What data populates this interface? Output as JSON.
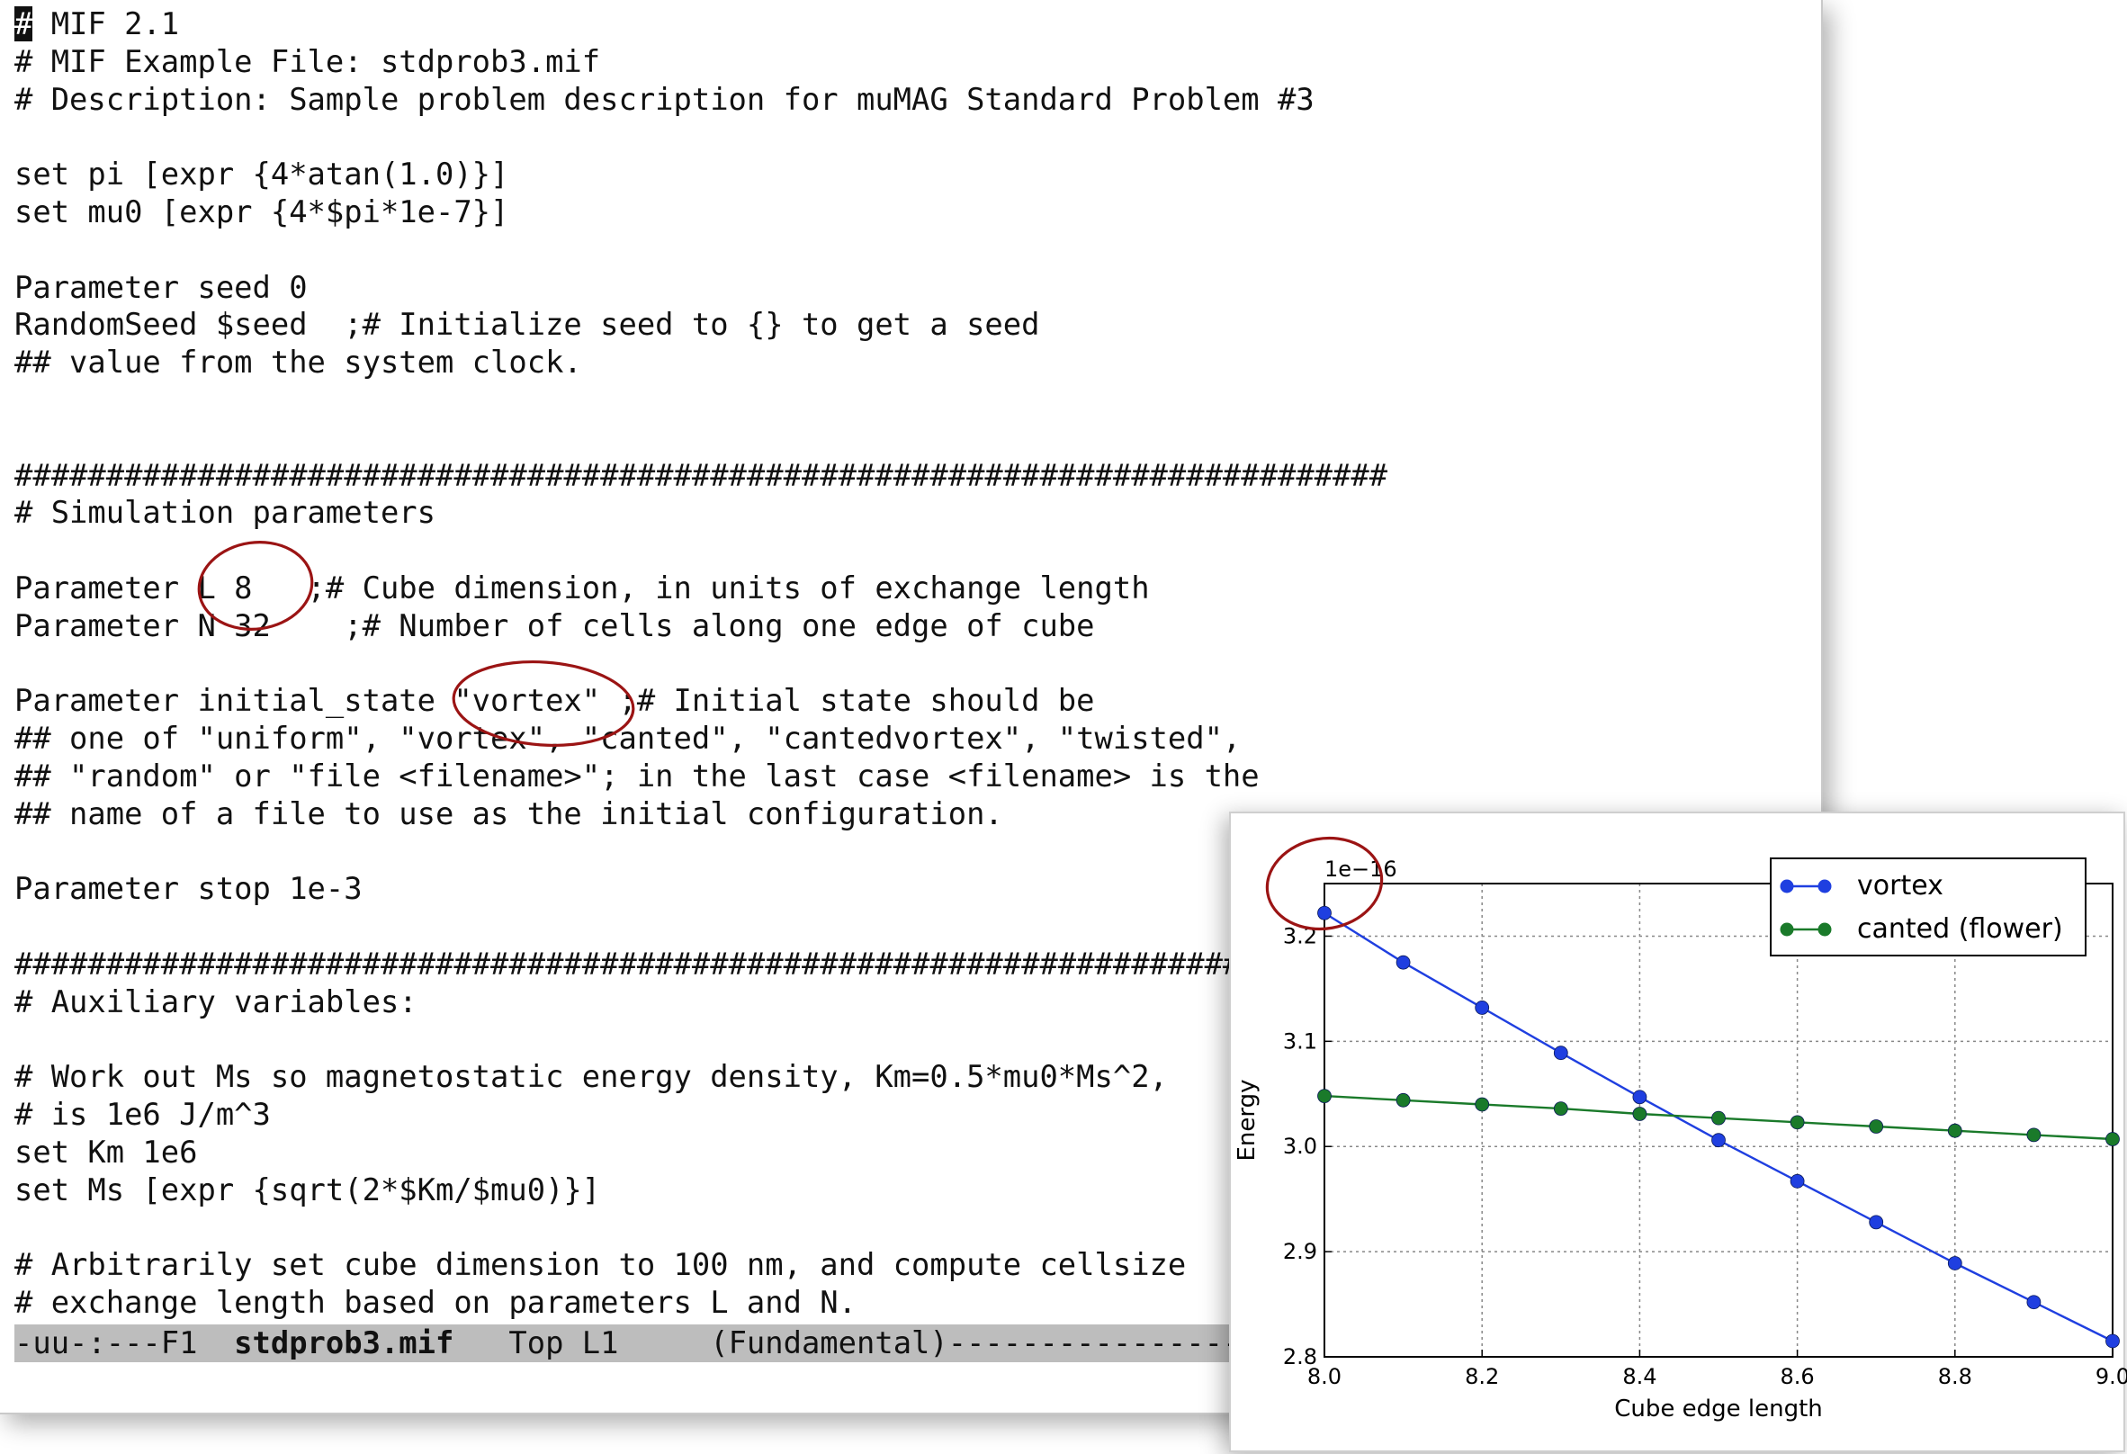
{
  "editor": {
    "lines": [
      "# MIF 2.1",
      "# MIF Example File: stdprob3.mif",
      "# Description: Sample problem description for muMAG Standard Problem #3",
      "",
      "set pi [expr {4*atan(1.0)}]",
      "set mu0 [expr {4*$pi*1e-7}]",
      "",
      "Parameter seed 0",
      "RandomSeed $seed  ;# Initialize seed to {} to get a seed",
      "## value from the system clock.",
      "",
      "",
      "###########################################################################",
      "# Simulation parameters",
      "",
      "Parameter L 8   ;# Cube dimension, in units of exchange length",
      "Parameter N 32    ;# Number of cells along one edge of cube",
      "",
      "Parameter initial_state \"vortex\" ;# Initial state should be",
      "## one of \"uniform\", \"vortex\", \"canted\", \"cantedvortex\", \"twisted\",",
      "## \"random\" or \"file <filename>\"; in the last case <filename> is the",
      "## name of a file to use as the initial configuration.",
      "",
      "Parameter stop 1e-3",
      "",
      "###########################################################################",
      "# Auxiliary variables:",
      "",
      "# Work out Ms so magnetostatic energy density, Km=0.5*mu0*Ms^2,",
      "# is 1e6 J/m^3",
      "set Km 1e6",
      "set Ms [expr {sqrt(2*$Km/$mu0)}]",
      "",
      "# Arbitrarily set cube dimension to 100 nm, and compute cellsize",
      "# exchange length based on parameters L and N."
    ],
    "modeline": {
      "prefix": "-uu-:---F1  ",
      "filename": "stdprob3.mif",
      "position": "   Top L1     ",
      "mode": "(Fundamental)-----------------------------------------------"
    }
  },
  "chart_data": {
    "type": "line",
    "offset_label": "1e−16",
    "xlabel": "Cube edge length",
    "ylabel": "Energy",
    "xlim": [
      8.0,
      9.0
    ],
    "ylim": [
      2.8,
      3.25
    ],
    "xticks": [
      "8.0",
      "8.2",
      "8.4",
      "8.6",
      "8.8",
      "9.0"
    ],
    "yticks": [
      "2.8",
      "2.9",
      "3.0",
      "3.1",
      "3.2"
    ],
    "grid": true,
    "legend_position": "top-right",
    "x": [
      8.0,
      8.1,
      8.2,
      8.3,
      8.4,
      8.5,
      8.6,
      8.7,
      8.8,
      8.9,
      9.0
    ],
    "series": [
      {
        "name": "vortex",
        "color": "#1f3fe0",
        "values": [
          3.222,
          3.175,
          3.132,
          3.089,
          3.047,
          3.006,
          2.967,
          2.928,
          2.889,
          2.852,
          2.815
        ]
      },
      {
        "name": "canted (flower)",
        "color": "#1a7a2a",
        "values": [
          3.048,
          3.044,
          3.04,
          3.036,
          3.031,
          3.027,
          3.023,
          3.019,
          3.015,
          3.011,
          3.007
        ]
      }
    ]
  },
  "colors": {
    "annotation": "#9b1414",
    "modeline_bg": "#bdbdbd"
  }
}
